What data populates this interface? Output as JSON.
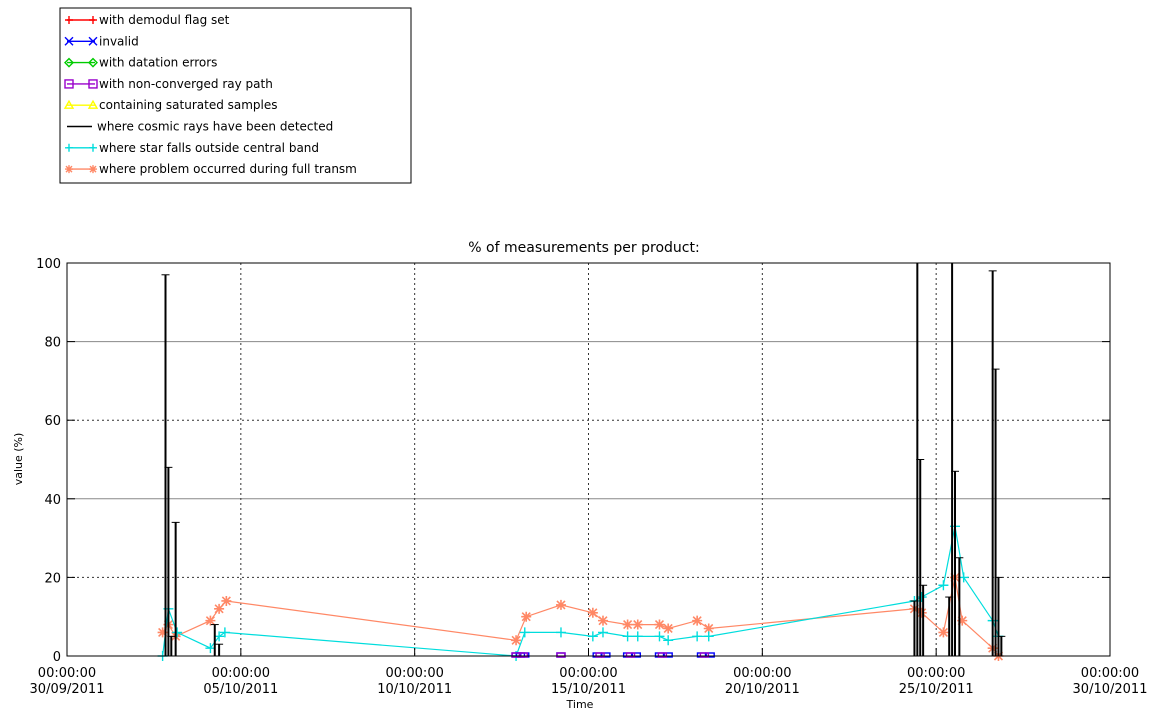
{
  "chart_data": {
    "type": "line",
    "title": "% of measurements per product:",
    "xlabel": "Time",
    "ylabel": "value (%)",
    "ylim": [
      0,
      100
    ],
    "xlim": [
      "2011-09-30",
      "2011-10-30"
    ],
    "y_ticks": [
      "0",
      "20",
      "40",
      "60",
      "80",
      "100"
    ],
    "x_ticks": [
      {
        "time": "00:00:00",
        "date": "30/09/2011"
      },
      {
        "time": "00:00:00",
        "date": "05/10/2011"
      },
      {
        "time": "00:00:00",
        "date": "10/10/2011"
      },
      {
        "time": "00:00:00",
        "date": "15/10/2011"
      },
      {
        "time": "00:00:00",
        "date": "20/10/2011"
      },
      {
        "time": "00:00:00",
        "date": "25/10/2011"
      },
      {
        "time": "00:00:00",
        "date": "30/10/2011"
      }
    ],
    "grid": "dotted at 0, 20, 60 and vertical ticks; solid at 40, 80",
    "legend": "top-left, outside plot",
    "series": [
      {
        "name": "with demodul flag set",
        "color": "#ff0000",
        "x": [],
        "y": []
      },
      {
        "name": "invalid",
        "color": "#0000ff",
        "x": [
          "2011-10-12 22:00",
          "2011-10-13 01:00",
          "2011-10-13 04:00",
          "2011-10-14 05:00",
          "2011-10-15 06:00",
          "2011-10-15 12:00",
          "2011-10-16 03:00",
          "2011-10-16 09:00",
          "2011-10-17 01:00",
          "2011-10-17 07:00",
          "2011-10-18 06:00",
          "2011-10-18 12:00"
        ],
        "y": [
          0,
          0,
          0,
          0,
          0,
          0,
          0,
          0,
          0,
          0,
          0,
          0
        ]
      },
      {
        "name": "with datation errors",
        "color": "#00cc00",
        "x": [],
        "y": []
      },
      {
        "name": "with non-converged ray path",
        "color": "#9900cc",
        "x": [
          "2011-10-12 22:00",
          "2011-10-13 03:00",
          "2011-10-14 05:00",
          "2011-10-15 08:00",
          "2011-10-16 05:00",
          "2011-10-17 03:00",
          "2011-10-18 08:00"
        ],
        "y": [
          0,
          0,
          0,
          0,
          0,
          0,
          0
        ]
      },
      {
        "name": "containing saturated samples",
        "color": "#ffff00",
        "x": [],
        "y": []
      },
      {
        "name": "where cosmic rays have been detected",
        "color": "#000000",
        "x": [
          "2011-10-02 18:00",
          "2011-10-02 20:00",
          "2011-10-02 22:00",
          "2011-10-03 00:00",
          "2011-10-03 03:00",
          "2011-10-04 03:00",
          "2011-10-04 06:00",
          "2011-10-04 09:00",
          "2011-10-24 09:00",
          "2011-10-24 11:00",
          "2011-10-24 13:00",
          "2011-10-24 15:00",
          "2011-10-25 09:00",
          "2011-10-25 11:00",
          "2011-10-25 13:00",
          "2011-10-25 16:00",
          "2011-10-26 13:00",
          "2011-10-26 15:00",
          "2011-10-26 17:00",
          "2011-10-26 19:00",
          "2011-10-26 21:00"
        ],
        "y": [
          0,
          97,
          48,
          5,
          34,
          0,
          8,
          3,
          14,
          100,
          50,
          18,
          15,
          100,
          47,
          25,
          0,
          98,
          73,
          20,
          5
        ]
      },
      {
        "name": "where star falls outside central band",
        "color": "#00dddd",
        "x": [
          "2011-10-02 18:00",
          "2011-10-02 22:00",
          "2011-10-03 04:00",
          "2011-10-04 03:00",
          "2011-10-04 09:00",
          "2011-10-04 13:00",
          "2011-10-12 22:00",
          "2011-10-13 04:00",
          "2011-10-14 05:00",
          "2011-10-15 03:00",
          "2011-10-15 10:00",
          "2011-10-16 03:00",
          "2011-10-16 10:00",
          "2011-10-17 01:00",
          "2011-10-17 07:00",
          "2011-10-18 03:00",
          "2011-10-18 11:00",
          "2011-10-24 09:00",
          "2011-10-24 14:00",
          "2011-10-25 05:00",
          "2011-10-25 13:00",
          "2011-10-25 19:00",
          "2011-10-26 15:00",
          "2011-10-26 19:00"
        ],
        "y": [
          0,
          12,
          6,
          2,
          5,
          6,
          0,
          6,
          6,
          5,
          6,
          5,
          5,
          5,
          4,
          5,
          5,
          14,
          15,
          18,
          33,
          20,
          9,
          5
        ]
      },
      {
        "name": "where problem occurred during full transm",
        "color": "#ff8866",
        "x": [
          "2011-10-02 18:00",
          "2011-10-02 22:00",
          "2011-10-03 03:00",
          "2011-10-04 03:00",
          "2011-10-04 09:00",
          "2011-10-04 14:00",
          "2011-10-12 22:00",
          "2011-10-13 05:00",
          "2011-10-14 05:00",
          "2011-10-15 03:00",
          "2011-10-15 10:00",
          "2011-10-16 03:00",
          "2011-10-16 10:00",
          "2011-10-17 01:00",
          "2011-10-17 07:00",
          "2011-10-18 03:00",
          "2011-10-18 11:00",
          "2011-10-24 09:00",
          "2011-10-24 14:00",
          "2011-10-25 05:00",
          "2011-10-25 13:00",
          "2011-10-25 18:00",
          "2011-10-26 15:00",
          "2011-10-26 19:00"
        ],
        "y": [
          6,
          8,
          5,
          9,
          12,
          14,
          4,
          10,
          13,
          11,
          9,
          8,
          8,
          8,
          7,
          9,
          7,
          12,
          11,
          6,
          20,
          9,
          2,
          0
        ]
      }
    ]
  }
}
